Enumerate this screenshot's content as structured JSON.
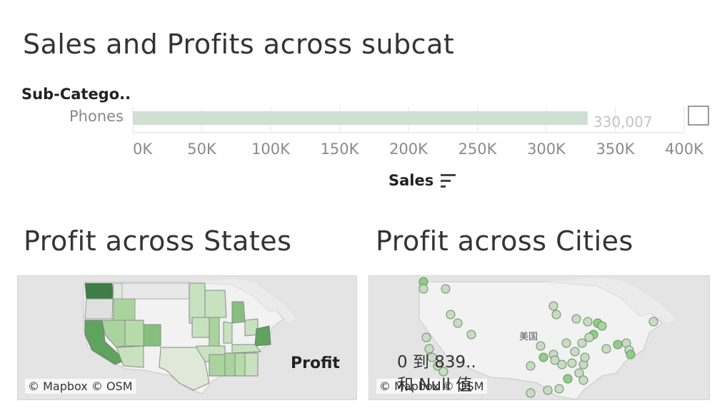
{
  "dashboard": {
    "title": "Sales and Profits across subcat",
    "states_title": "Profit across States",
    "cities_title": "Profit across Cities"
  },
  "chart_data": [
    {
      "type": "bar",
      "orientation": "horizontal",
      "row_header": "Sub-Catego..",
      "categories": [
        "Phones"
      ],
      "values": [
        330007
      ],
      "data_labels": [
        "330,007"
      ],
      "xlabel": "Sales",
      "xlim": [
        0,
        400000
      ],
      "xticks": [
        0,
        50000,
        100000,
        150000,
        200000,
        250000,
        300000,
        350000,
        400000
      ],
      "xtick_labels": [
        "0K",
        "50K",
        "100K",
        "150K",
        "200K",
        "250K",
        "300K",
        "350K",
        "400K"
      ],
      "bar_color": "#cfe0d2",
      "grid": true
    }
  ],
  "maps": {
    "states": {
      "attribution": "© Mapbox © OSM",
      "legend_title": "Profit",
      "fill_colors": [
        "#3e7d45",
        "#5ea35e",
        "#86c07f",
        "#a9d49e",
        "#c8e2c0",
        "#dfe9da"
      ]
    },
    "cities": {
      "attribution": "© Mapbox © OSM",
      "country_label": "美国",
      "legend_range": "0 到 839..",
      "legend_null": "和 Null 值",
      "marker_colors": [
        "#c8dcc2",
        "#8fcf85",
        "#a6d69b"
      ]
    }
  },
  "icons": {
    "sort": "sort-descending-icon",
    "filter_box": "checkbox-icon"
  }
}
